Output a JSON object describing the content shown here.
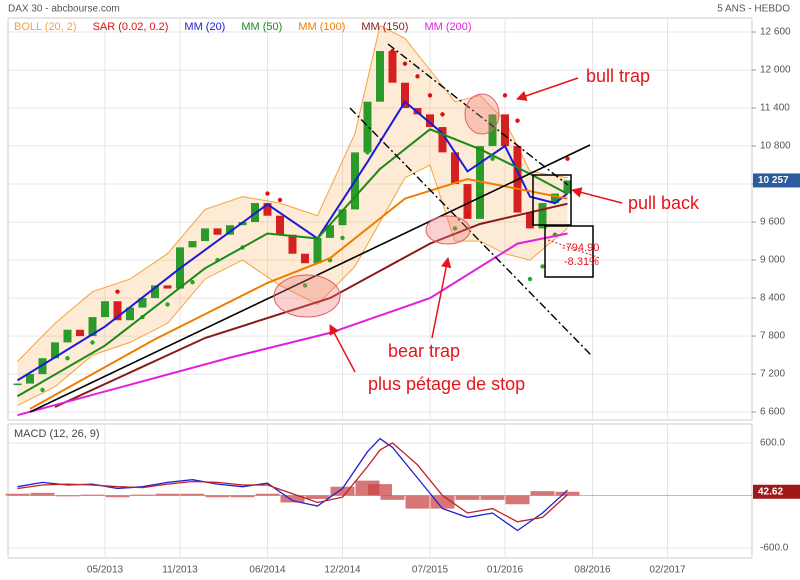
{
  "chart_data": [
    {
      "type": "line",
      "title": "DAX 30 - abcbourse.com",
      "subtitle": "5 ANS - HEBDO",
      "xlim": [
        -3.76,
        55.76
      ],
      "xticks": [
        {
          "value": 4,
          "label": "05/2013"
        },
        {
          "value": 10,
          "label": "11/2013"
        },
        {
          "value": 17,
          "label": "06/2014"
        },
        {
          "value": 23,
          "label": "12/2014"
        },
        {
          "value": 30,
          "label": "07/2015"
        },
        {
          "value": 36,
          "label": "01/2016"
        },
        {
          "value": 43,
          "label": "08/2016"
        },
        {
          "value": 49,
          "label": "02/2017"
        }
      ],
      "ylim": [
        6475,
        12790
      ],
      "yticks": [
        {
          "value": 6600,
          "label": "6 600"
        },
        {
          "value": 7200,
          "label": "7 200"
        },
        {
          "value": 7800,
          "label": "7 800"
        },
        {
          "value": 8400,
          "label": "8 400"
        },
        {
          "value": 9000,
          "label": "9 000"
        },
        {
          "value": 9600,
          "label": "9 600"
        },
        {
          "value": 10200,
          "label": "10 200"
        },
        {
          "value": 10800,
          "label": "10 800"
        },
        {
          "value": 11400,
          "label": "11 400"
        },
        {
          "value": 12000,
          "label": "12 000"
        },
        {
          "value": 12600,
          "label": "12 600"
        }
      ],
      "grid": true,
      "current": {
        "value": 10257,
        "label": "10 257"
      },
      "price": {
        "up_color": "#2a9a2a",
        "down_color": "#d42020",
        "x": [
          -3,
          -2,
          -1,
          0,
          1,
          2,
          3,
          4,
          5,
          6,
          7,
          8,
          9,
          10,
          11,
          12,
          13,
          14,
          15,
          16,
          17,
          18,
          19,
          20,
          21,
          22,
          23,
          24,
          25,
          26,
          27,
          28,
          29,
          30,
          31,
          32,
          33,
          34,
          35,
          36,
          37,
          38,
          39,
          40,
          41
        ],
        "values": [
          7050,
          7200,
          7450,
          7700,
          7900,
          7800,
          8100,
          8350,
          8050,
          8250,
          8400,
          8600,
          8550,
          9200,
          9300,
          9500,
          9400,
          9550,
          9600,
          9900,
          9700,
          9400,
          9100,
          8950,
          9350,
          9550,
          9800,
          10700,
          11500,
          12300,
          11800,
          11400,
          11300,
          11100,
          10700,
          10200,
          9650,
          10800,
          11300,
          10800,
          9750,
          9500,
          9900,
          10050,
          10257
        ]
      },
      "series": [
        {
          "name": "BOLL (20, 2)",
          "style": "band",
          "color": "#f4a340",
          "x": [
            -3,
            0,
            3,
            6,
            9,
            12,
            15,
            18,
            21,
            24,
            26,
            28,
            30,
            32,
            34,
            36,
            38,
            41
          ],
          "values": [
            7400,
            8000,
            8500,
            8700,
            9100,
            9800,
            10000,
            9900,
            9700,
            11000,
            12700,
            12500,
            12000,
            11500,
            11600,
            11200,
            10400,
            10300
          ],
          "lower": [
            6700,
            7000,
            7500,
            7700,
            8000,
            8700,
            9000,
            8600,
            8300,
            8900,
            9600,
            10300,
            10500,
            9300,
            9300,
            9100,
            9000,
            9500
          ]
        },
        {
          "name": "SAR (0.02, 0.2)",
          "style": "dots",
          "color": "#e01010",
          "up_color": "#22aa22",
          "x": [
            -1,
            1,
            3,
            5,
            7,
            9,
            11,
            13,
            15,
            17,
            18,
            20,
            22,
            23,
            24,
            25,
            27,
            28,
            29,
            30,
            31,
            32,
            33,
            34,
            35,
            36,
            37,
            38,
            39,
            40,
            41
          ],
          "values": [
            6950,
            7450,
            7700,
            8500,
            8100,
            8300,
            8650,
            9000,
            9200,
            10050,
            9950,
            8600,
            9000,
            9350,
            9900,
            10700,
            12300,
            12100,
            11900,
            11600,
            11300,
            9500,
            9700,
            10100,
            10600,
            11600,
            11200,
            8700,
            8900,
            9400,
            10600
          ]
        },
        {
          "name": "MM (20)",
          "style": "line",
          "color": "#1a1adb",
          "x": [
            -3,
            4,
            10,
            17,
            21,
            25,
            28,
            31,
            33,
            36,
            38,
            40,
            41
          ],
          "values": [
            7100,
            7950,
            8870,
            9880,
            9340,
            10550,
            11500,
            11000,
            10400,
            10800,
            10000,
            9900,
            10050
          ]
        },
        {
          "name": "MM (50)",
          "style": "line",
          "color": "#1a8a1a",
          "x": [
            -3,
            4,
            12,
            17,
            21,
            26,
            30,
            34,
            38,
            41
          ],
          "values": [
            6850,
            7650,
            8870,
            9420,
            9340,
            10440,
            11065,
            10750,
            10360,
            10045
          ]
        },
        {
          "name": "MM (100)",
          "style": "line",
          "color": "#f07d00",
          "x": [
            -2,
            8,
            17,
            22,
            28,
            33,
            37,
            41
          ],
          "values": [
            6650,
            7750,
            8640,
            9030,
            9970,
            10280,
            10125,
            9970
          ]
        },
        {
          "name": "MM (150)",
          "style": "line",
          "color": "#8b1a1a",
          "x": [
            0,
            12,
            22,
            30,
            34,
            41
          ],
          "values": [
            6680,
            7770,
            8400,
            9260,
            9570,
            9890
          ]
        },
        {
          "name": "MM (200)",
          "style": "line",
          "color": "#e020e0",
          "x": [
            -3,
            14,
            22,
            30,
            37,
            41
          ],
          "values": [
            6550,
            7460,
            7850,
            8400,
            9260,
            9420
          ]
        }
      ]
    },
    {
      "type": "macd",
      "title": "MACD (12, 26, 9)",
      "ylim": [
        -714,
        805
      ],
      "yticks": [
        {
          "value": 600,
          "label": "600.0"
        },
        {
          "value": -600,
          "label": "-600.0"
        }
      ],
      "x": [
        -3,
        -1,
        1,
        3,
        5,
        7,
        9,
        11,
        13,
        15,
        17,
        19,
        21,
        23,
        25,
        26,
        27,
        29,
        31,
        33,
        35,
        37,
        39,
        41
      ],
      "series": [
        {
          "style": "bars",
          "color": "#c84848",
          "values": [
            20,
            30,
            -10,
            10,
            -20,
            10,
            20,
            20,
            -20,
            -20,
            20,
            -80,
            -40,
            100,
            170,
            130,
            -50,
            -150,
            -150,
            -50,
            -50,
            -100,
            50,
            42.62
          ]
        },
        {
          "style": "line",
          "color": "#2020d0",
          "values": [
            100,
            150,
            120,
            130,
            80,
            100,
            150,
            180,
            130,
            100,
            140,
            -60,
            -120,
            80,
            500,
            650,
            550,
            200,
            -150,
            -250,
            -200,
            -400,
            -200,
            60
          ]
        },
        {
          "style": "line",
          "color": "#c02020",
          "values": [
            80,
            120,
            130,
            120,
            100,
            90,
            130,
            160,
            150,
            120,
            120,
            20,
            -80,
            -20,
            330,
            520,
            600,
            350,
            0,
            -200,
            -150,
            -300,
            -250,
            10
          ]
        }
      ]
    }
  ],
  "annotations": [
    "bull trap",
    "pull back",
    "bear trap",
    "plus pétage de stop",
    "-794.90",
    "-8.31%"
  ]
}
